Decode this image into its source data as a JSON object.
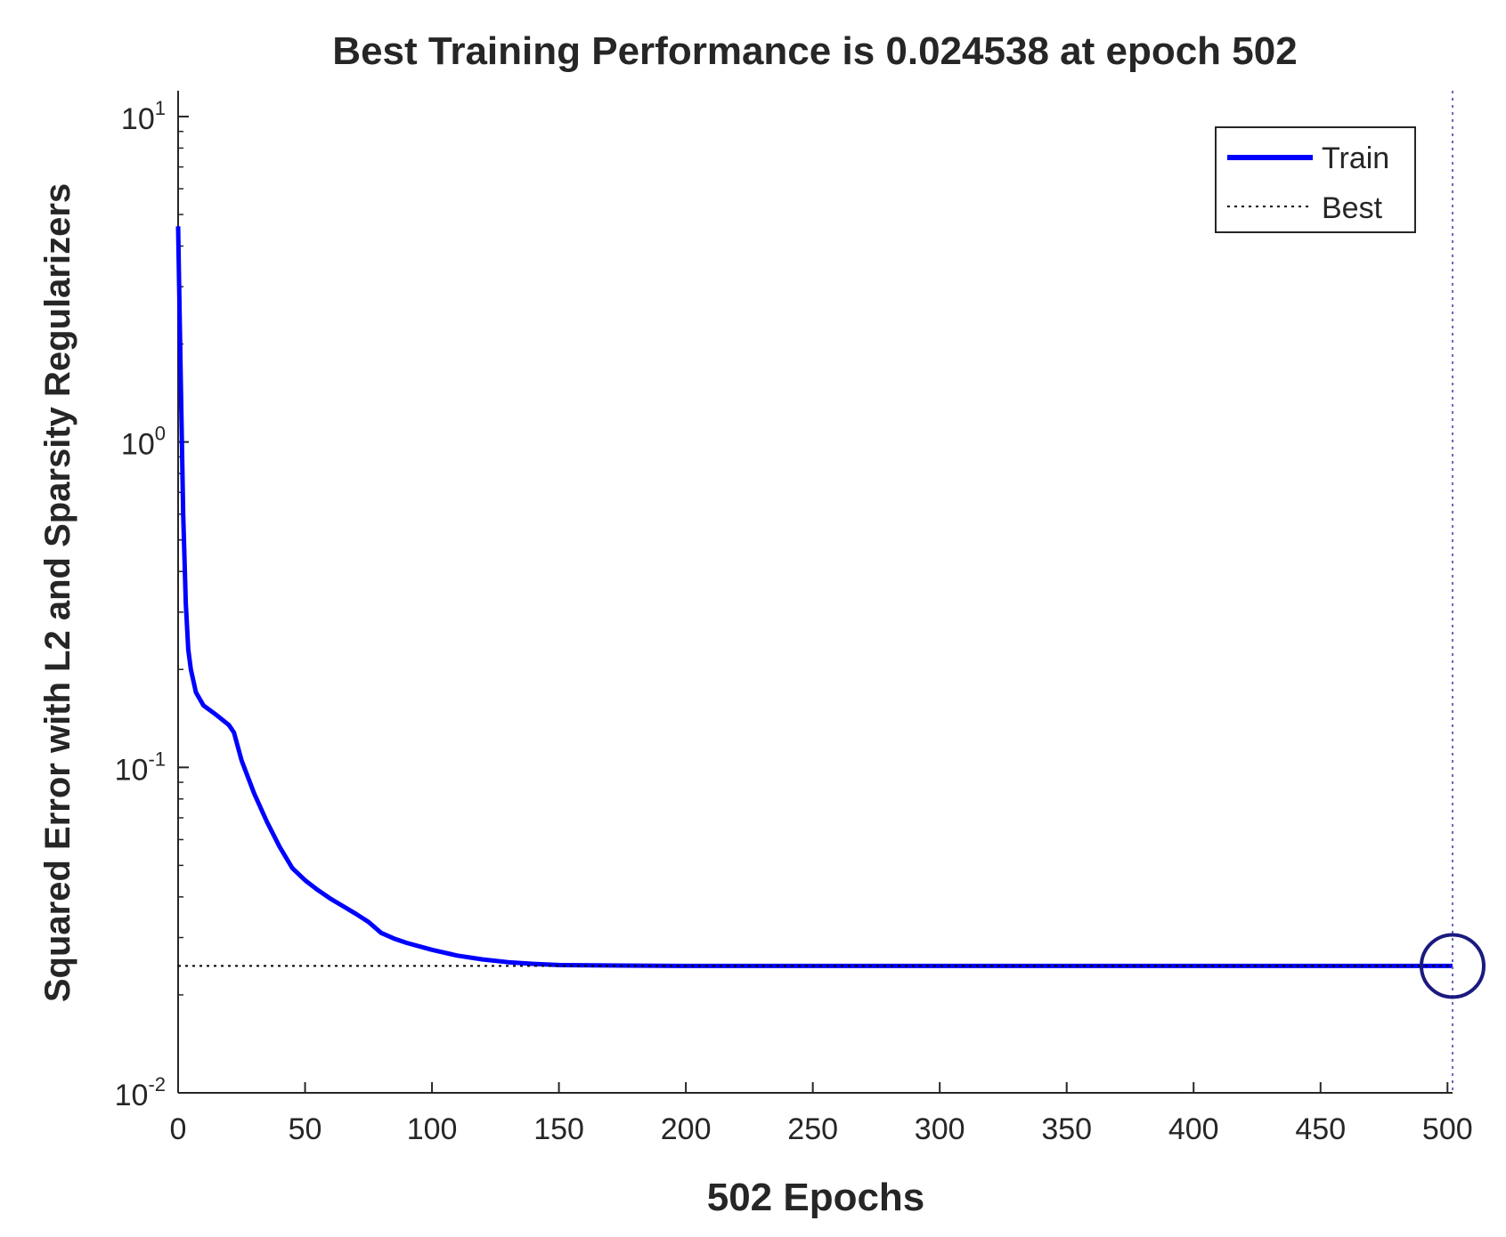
{
  "chart_data": {
    "type": "line",
    "title": "Best Training Performance is 0.024538 at epoch 502",
    "xlabel": "502 Epochs",
    "ylabel": "Squared Error with L2 and Sparsity Regularizers",
    "xlim": [
      0,
      502
    ],
    "ylim": [
      0.01,
      12
    ],
    "yscale": "log",
    "grid": false,
    "legend_position": "top-right",
    "x_ticks": [
      0,
      50,
      100,
      150,
      200,
      250,
      300,
      350,
      400,
      450,
      500
    ],
    "x_tick_labels": [
      "0",
      "50",
      "100",
      "150",
      "200",
      "250",
      "300",
      "350",
      "400",
      "450",
      "500"
    ],
    "y_ticks": [
      {
        "value": 0.01,
        "base": "10",
        "exp": "-2"
      },
      {
        "value": 0.1,
        "base": "10",
        "exp": "-1"
      },
      {
        "value": 1,
        "base": "10",
        "exp": "0"
      },
      {
        "value": 10,
        "base": "10",
        "exp": "1"
      }
    ],
    "series": [
      {
        "name": "Train",
        "color": "#0000ff",
        "style": "solid",
        "x": [
          0,
          1,
          2,
          3,
          4,
          5,
          7,
          10,
          15,
          20,
          22,
          25,
          30,
          35,
          40,
          45,
          50,
          55,
          60,
          70,
          75,
          80,
          85,
          90,
          100,
          110,
          120,
          130,
          140,
          150,
          175,
          200,
          250,
          300,
          400,
          502
        ],
        "y": [
          4.6,
          1.6,
          0.6,
          0.32,
          0.23,
          0.2,
          0.17,
          0.155,
          0.145,
          0.135,
          0.128,
          0.105,
          0.083,
          0.068,
          0.057,
          0.049,
          0.045,
          0.042,
          0.0395,
          0.0355,
          0.0335,
          0.031,
          0.0298,
          0.0289,
          0.0275,
          0.0264,
          0.0257,
          0.0252,
          0.0249,
          0.0247,
          0.0246,
          0.02455,
          0.02454,
          0.02454,
          0.02454,
          0.024538
        ]
      },
      {
        "name": "Best",
        "color": "#000000",
        "style": "dotted",
        "x": [
          0,
          502
        ],
        "y": [
          0.024538,
          0.024538
        ]
      }
    ],
    "best_marker": {
      "x": 502,
      "y": 0.024538,
      "color": "#1a1a80",
      "shape": "circle"
    },
    "best_vline": {
      "x": 502,
      "color": "#6666cc",
      "style": "dotted"
    }
  }
}
